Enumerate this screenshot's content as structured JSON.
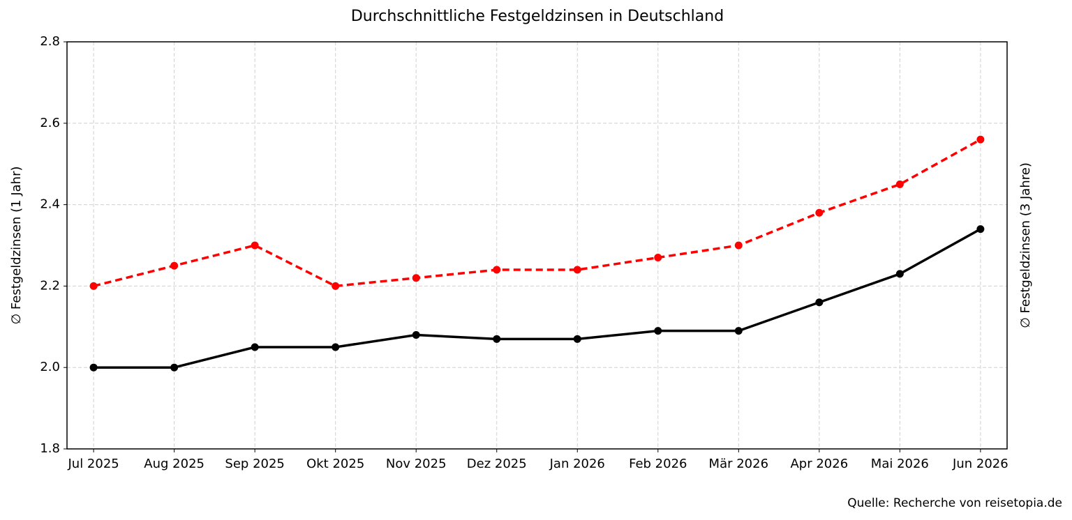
{
  "chart_data": {
    "type": "line",
    "title": "Durchschnittliche Festgeldzinsen in Deutschland",
    "ylabel": "∅ Festgeldzinsen (1 Jahr)",
    "y2label": "∅ Festgeldzinsen (3 Jahre)",
    "y2label_color": "#ff0000",
    "source": "Quelle: Recherche von reisetopia.de",
    "categories": [
      "Jul 2025",
      "Aug 2025",
      "Sep 2025",
      "Okt 2025",
      "Nov 2025",
      "Dez 2025",
      "Jan 2026",
      "Feb 2026",
      "Mär 2026",
      "Apr 2026",
      "Mai 2026",
      "Jun 2026"
    ],
    "series": [
      {
        "color": "#000000",
        "linestyle": "solid",
        "values": [
          2.0,
          2.0,
          2.05,
          2.05,
          2.08,
          2.07,
          2.07,
          2.09,
          2.09,
          2.16,
          2.23,
          2.34
        ]
      },
      {
        "color": "#ff0000",
        "linestyle": "dashed",
        "values": [
          2.2,
          2.25,
          2.3,
          2.2,
          2.22,
          2.24,
          2.24,
          2.27,
          2.3,
          2.38,
          2.45,
          2.56
        ]
      }
    ],
    "ylim": [
      1.8,
      2.8
    ],
    "yticks": [
      1.8,
      {
        "value": 2,
        "label": "2.0"
      },
      2.2,
      2.4,
      2.6,
      2.8
    ],
    "grid": true
  }
}
